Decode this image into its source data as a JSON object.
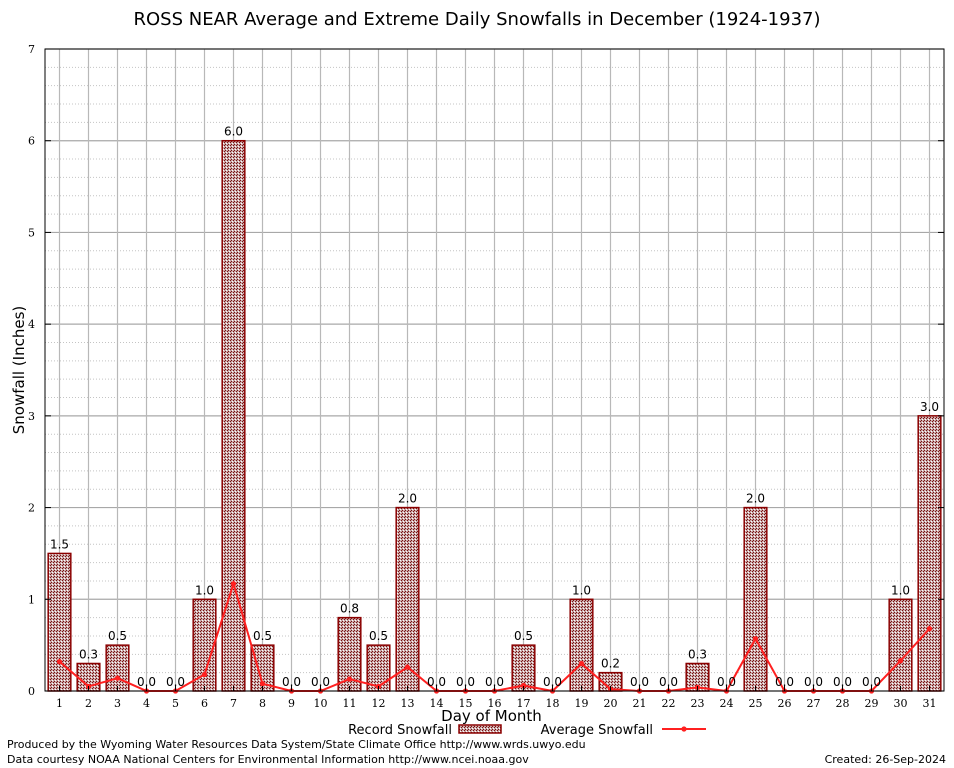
{
  "chart_data": {
    "type": "bar",
    "title": "ROSS NEAR Average and Extreme Daily Snowfalls in December (1924-1937)",
    "xlabel": "Day of Month",
    "ylabel": "Snowfall (Inches)",
    "ylim": [
      0,
      7
    ],
    "yticks": [
      "0",
      "1",
      "2",
      "3",
      "4",
      "5",
      "6",
      "7"
    ],
    "grid": true,
    "legend_placement": "bottom",
    "categories": [
      "1",
      "2",
      "3",
      "4",
      "5",
      "6",
      "7",
      "8",
      "9",
      "10",
      "11",
      "12",
      "13",
      "14",
      "15",
      "16",
      "17",
      "18",
      "19",
      "20",
      "21",
      "22",
      "23",
      "24",
      "25",
      "26",
      "27",
      "28",
      "29",
      "30",
      "31"
    ],
    "series": [
      {
        "name": "Record Snowfall",
        "type": "bar",
        "color": "#8b0000",
        "values": [
          1.5,
          0.3,
          0.5,
          0.0,
          0.0,
          1.0,
          6.0,
          0.5,
          0.0,
          0.0,
          0.8,
          0.5,
          2.0,
          0.0,
          0.0,
          0.0,
          0.5,
          0.0,
          1.0,
          0.2,
          0.0,
          0.0,
          0.3,
          0.0,
          2.0,
          0.0,
          0.0,
          0.0,
          0.0,
          1.0,
          3.0
        ],
        "labels": [
          "1.5",
          "0.3",
          "0.5",
          "0.0",
          "0.0",
          "1.0",
          "6.0",
          "0.5",
          "0.0",
          "0.0",
          "0.8",
          "0.5",
          "2.0",
          "0.0",
          "0.0",
          "0.0",
          "0.5",
          "0.0",
          "1.0",
          "0.2",
          "0.0",
          "0.0",
          "0.3",
          "0.0",
          "2.0",
          "0.0",
          "0.0",
          "0.0",
          "0.0",
          "1.0",
          "3.0"
        ]
      },
      {
        "name": "Average Snowfall",
        "type": "line",
        "color": "#ff2020",
        "values": [
          0.32,
          0.05,
          0.14,
          0.0,
          0.0,
          0.18,
          1.17,
          0.08,
          0.0,
          0.0,
          0.13,
          0.05,
          0.26,
          0.0,
          0.0,
          0.0,
          0.06,
          0.0,
          0.3,
          0.02,
          0.0,
          0.0,
          0.04,
          0.0,
          0.57,
          0.0,
          0.0,
          0.0,
          0.0,
          0.33,
          0.68
        ]
      }
    ]
  },
  "footer": {
    "produced_by": "Produced by the Wyoming Water Resources Data System/State Climate Office http://www.wrds.uwyo.edu",
    "courtesy": "Data courtesy NOAA National Centers for Environmental Information http://www.ncei.noaa.gov",
    "created": "Created: 26-Sep-2024"
  }
}
